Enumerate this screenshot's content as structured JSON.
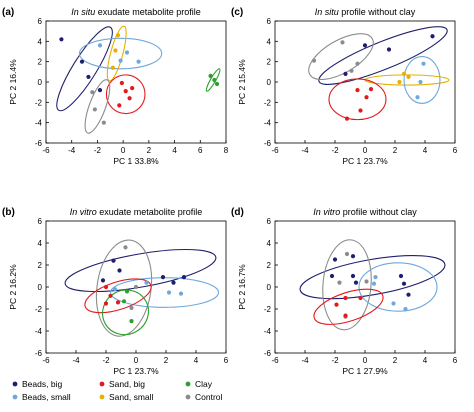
{
  "legend": [
    {
      "label": "Beads, big",
      "color": "#1f1f6e"
    },
    {
      "label": "Sand, big",
      "color": "#e31a1c"
    },
    {
      "label": "Clay",
      "color": "#2ca02c"
    },
    {
      "label": "Beads, small",
      "color": "#6fa8dc"
    },
    {
      "label": "Sand, small",
      "color": "#e6b000"
    },
    {
      "label": "Control",
      "color": "#8c8c8c"
    }
  ],
  "chart_data": [
    {
      "type": "scatter",
      "panel_label": "(a)",
      "title_italic": "In situ",
      "title_rest": " exudate metabolite profile",
      "xlabel": "PC 1 33.8%",
      "ylabel": "PC 2 16.4%",
      "xlim": [
        -6,
        8
      ],
      "ylim": [
        -6,
        6
      ],
      "xticks": [
        -6,
        -4,
        -2,
        0,
        2,
        4,
        6,
        8
      ],
      "yticks": [
        -6,
        -4,
        -2,
        0,
        2,
        4,
        6
      ],
      "series": [
        {
          "name": "Beads, big",
          "color": "#1f1f6e",
          "points": [
            [
              -4.8,
              4.2
            ],
            [
              -3.2,
              2.0
            ],
            [
              -2.7,
              0.5
            ],
            [
              -1.8,
              -0.8
            ]
          ]
        },
        {
          "name": "Beads, small",
          "color": "#6fa8dc",
          "points": [
            [
              -1.8,
              3.6
            ],
            [
              0.3,
              2.9
            ],
            [
              1.2,
              2.0
            ],
            [
              -0.2,
              2.1
            ]
          ]
        },
        {
          "name": "Sand, small",
          "color": "#e6b000",
          "points": [
            [
              -0.4,
              4.6
            ],
            [
              -0.6,
              3.1
            ],
            [
              -0.8,
              1.4
            ]
          ]
        },
        {
          "name": "Sand, big",
          "color": "#e31a1c",
          "points": [
            [
              -0.1,
              -0.1
            ],
            [
              0.2,
              -0.9
            ],
            [
              0.7,
              -0.6
            ],
            [
              0.5,
              -1.6
            ],
            [
              -0.3,
              -2.3
            ]
          ]
        },
        {
          "name": "Control",
          "color": "#8c8c8c",
          "points": [
            [
              -2.4,
              -1.0
            ],
            [
              -2.2,
              -2.7
            ],
            [
              -1.5,
              -4.0
            ]
          ]
        },
        {
          "name": "Clay",
          "color": "#2ca02c",
          "points": [
            [
              6.8,
              0.6
            ],
            [
              7.1,
              0.2
            ],
            [
              7.3,
              -0.2
            ]
          ]
        }
      ],
      "ellipses": [
        {
          "group": "Beads, big",
          "cx": -3.0,
          "cy": 1.3,
          "rx": 3.8,
          "ry": 1.15,
          "angle": -58
        },
        {
          "group": "Beads, small",
          "cx": -0.2,
          "cy": 2.8,
          "rx": 3.2,
          "ry": 1.5,
          "angle": 0
        },
        {
          "group": "Sand, small",
          "cx": -0.5,
          "cy": 2.8,
          "rx": 2.2,
          "ry": 0.6,
          "angle": -75
        },
        {
          "group": "Sand, big",
          "cx": 0.2,
          "cy": -1.2,
          "rx": 1.5,
          "ry": 1.9,
          "angle": 0
        },
        {
          "group": "Control",
          "cx": -2.0,
          "cy": -2.4,
          "rx": 2.2,
          "ry": 0.8,
          "angle": -70
        },
        {
          "group": "Clay",
          "cx": 7.0,
          "cy": 0.2,
          "rx": 1.0,
          "ry": 0.25,
          "angle": -60
        }
      ]
    },
    {
      "type": "scatter",
      "panel_label": "(c)",
      "title_italic": "In situ",
      "title_rest": " profile without clay",
      "xlabel": "PC 1 23.7%",
      "ylabel": "PC 2 15.4%",
      "xlim": [
        -6,
        6
      ],
      "ylim": [
        -6,
        6
      ],
      "xticks": [
        -6,
        -4,
        -2,
        0,
        2,
        4,
        6
      ],
      "yticks": [
        -6,
        -4,
        -2,
        0,
        2,
        4,
        6
      ],
      "series": [
        {
          "name": "Beads, big",
          "color": "#1f1f6e",
          "points": [
            [
              4.5,
              4.5
            ],
            [
              1.6,
              3.2
            ],
            [
              0.0,
              3.6
            ],
            [
              -1.3,
              0.8
            ]
          ]
        },
        {
          "name": "Beads, small",
          "color": "#6fa8dc",
          "points": [
            [
              3.9,
              1.8
            ],
            [
              3.7,
              0.0
            ],
            [
              3.5,
              -1.5
            ]
          ]
        },
        {
          "name": "Sand, small",
          "color": "#e6b000",
          "points": [
            [
              2.6,
              0.8
            ],
            [
              2.3,
              0.0
            ],
            [
              2.9,
              0.5
            ]
          ]
        },
        {
          "name": "Sand, big",
          "color": "#e31a1c",
          "points": [
            [
              -0.5,
              -0.8
            ],
            [
              0.1,
              -1.5
            ],
            [
              -0.3,
              -2.8
            ],
            [
              -1.2,
              -3.6
            ],
            [
              0.4,
              -0.7
            ]
          ]
        },
        {
          "name": "Control",
          "color": "#8c8c8c",
          "points": [
            [
              -3.4,
              2.1
            ],
            [
              -1.5,
              3.9
            ],
            [
              -0.5,
              1.8
            ],
            [
              -0.9,
              1.1
            ]
          ]
        }
      ],
      "ellipses": [
        {
          "group": "Beads, big",
          "cx": 1.2,
          "cy": 2.6,
          "rx": 4.6,
          "ry": 1.35,
          "angle": -22
        },
        {
          "group": "Control",
          "cx": -1.6,
          "cy": 2.5,
          "rx": 2.4,
          "ry": 1.6,
          "angle": -30
        },
        {
          "group": "Sand, small",
          "cx": 2.8,
          "cy": 0.2,
          "rx": 2.8,
          "ry": 0.5,
          "angle": 0
        },
        {
          "group": "Beads, small",
          "cx": 3.8,
          "cy": 0.2,
          "rx": 1.2,
          "ry": 2.3,
          "angle": 0
        },
        {
          "group": "Sand, big",
          "cx": -0.5,
          "cy": -1.7,
          "rx": 1.9,
          "ry": 2.0,
          "angle": 0
        }
      ]
    },
    {
      "type": "scatter",
      "panel_label": "(b)",
      "title_italic": "In vitro",
      "title_rest": " exudate metabolite profile",
      "xlabel": "PC 1 23.7%",
      "ylabel": "PC 2 16.2%",
      "xlim": [
        -6,
        6
      ],
      "ylim": [
        -6,
        6
      ],
      "xticks": [
        -6,
        -4,
        -2,
        0,
        2,
        4,
        6
      ],
      "yticks": [
        -6,
        -4,
        -2,
        0,
        2,
        4,
        6
      ],
      "series": [
        {
          "name": "Beads, big",
          "color": "#1f1f6e",
          "points": [
            [
              -1.5,
              2.4
            ],
            [
              -2.2,
              0.6
            ],
            [
              -1.1,
              1.5
            ],
            [
              1.8,
              0.9
            ],
            [
              2.5,
              0.4
            ],
            [
              3.2,
              0.9
            ]
          ]
        },
        {
          "name": "Control",
          "color": "#8c8c8c",
          "points": [
            [
              -0.7,
              3.6
            ],
            [
              0.0,
              0.0
            ],
            [
              -0.3,
              -1.9
            ]
          ]
        },
        {
          "name": "Sand, big",
          "color": "#e31a1c",
          "points": [
            [
              -2.0,
              0.0
            ],
            [
              -1.7,
              -0.8
            ],
            [
              -1.2,
              -1.4
            ],
            [
              -2.0,
              -1.5
            ]
          ]
        },
        {
          "name": "Beads, small",
          "color": "#6fa8dc",
          "points": [
            [
              -1.4,
              -0.2
            ],
            [
              0.7,
              0.4
            ],
            [
              2.2,
              -0.5
            ],
            [
              3.0,
              -0.6
            ]
          ]
        },
        {
          "name": "Clay",
          "color": "#2ca02c",
          "points": [
            [
              -0.6,
              -0.4
            ],
            [
              -0.8,
              -1.3
            ],
            [
              -0.3,
              -3.1
            ]
          ]
        }
      ],
      "ellipses": [
        {
          "group": "Beads, big",
          "cx": 0.3,
          "cy": 1.5,
          "rx": 5.1,
          "ry": 1.5,
          "angle": -10
        },
        {
          "group": "Control",
          "cx": -0.8,
          "cy": -0.1,
          "rx": 1.8,
          "ry": 4.4,
          "angle": 8
        },
        {
          "group": "Beads, small",
          "cx": 1.9,
          "cy": -0.5,
          "rx": 3.6,
          "ry": 1.35,
          "angle": 0
        },
        {
          "group": "Sand, big",
          "cx": -1.2,
          "cy": -0.8,
          "rx": 2.3,
          "ry": 1.25,
          "angle": -18
        },
        {
          "group": "Clay",
          "cx": -0.7,
          "cy": -2.3,
          "rx": 1.55,
          "ry": 2.0,
          "angle": -30
        }
      ]
    },
    {
      "type": "scatter",
      "panel_label": "(d)",
      "title_italic": "In vitro",
      "title_rest": " profile without clay",
      "xlabel": "PC 1 27.9%",
      "ylabel": "PC 2 16.7%",
      "xlim": [
        -6,
        6
      ],
      "ylim": [
        -6,
        6
      ],
      "xticks": [
        -6,
        -4,
        -2,
        0,
        2,
        4,
        6
      ],
      "yticks": [
        -6,
        -4,
        -2,
        0,
        2,
        4,
        6
      ],
      "series": [
        {
          "name": "Beads, big",
          "color": "#1f1f6e",
          "points": [
            [
              -2.0,
              2.5
            ],
            [
              -0.8,
              2.8
            ],
            [
              -2.2,
              1.0
            ],
            [
              -0.8,
              1.0
            ],
            [
              -0.6,
              0.4
            ],
            [
              2.4,
              1.0
            ],
            [
              2.6,
              0.3
            ],
            [
              2.9,
              -0.7
            ]
          ]
        },
        {
          "name": "Control",
          "color": "#8c8c8c",
          "points": [
            [
              -1.2,
              3.0
            ],
            [
              -1.7,
              0.4
            ],
            [
              0.1,
              0.5
            ],
            [
              -1.3,
              -2.7
            ]
          ]
        },
        {
          "name": "Beads, small",
          "color": "#6fa8dc",
          "points": [
            [
              0.7,
              0.9
            ],
            [
              0.6,
              0.3
            ],
            [
              1.9,
              -1.5
            ],
            [
              2.7,
              -2.0
            ]
          ]
        },
        {
          "name": "Sand, big",
          "color": "#e31a1c",
          "points": [
            [
              -1.3,
              -1.0
            ],
            [
              -0.3,
              -1.0
            ],
            [
              -1.9,
              -1.6
            ],
            [
              -1.3,
              -2.6
            ]
          ]
        }
      ],
      "ellipses": [
        {
          "group": "Beads, big",
          "cx": 0.5,
          "cy": 0.9,
          "rx": 4.9,
          "ry": 1.6,
          "angle": -10
        },
        {
          "group": "Control",
          "cx": -1.2,
          "cy": 0.2,
          "rx": 1.6,
          "ry": 4.1,
          "angle": 5
        },
        {
          "group": "Beads, small",
          "cx": 2.2,
          "cy": 0.0,
          "rx": 2.6,
          "ry": 2.2,
          "angle": 0
        },
        {
          "group": "Sand, big",
          "cx": -1.1,
          "cy": -1.8,
          "rx": 2.4,
          "ry": 1.3,
          "angle": -18
        }
      ]
    }
  ]
}
